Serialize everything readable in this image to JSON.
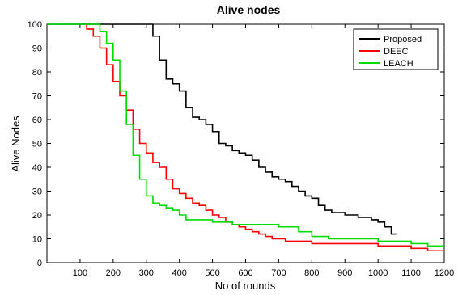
{
  "chart_data": {
    "type": "line",
    "title": "Alive nodes",
    "xlabel": "No of rounds",
    "ylabel": "Alive Nodes",
    "xlim": [
      0,
      1200
    ],
    "ylim": [
      0,
      100
    ],
    "xticks": [
      100,
      200,
      300,
      400,
      500,
      600,
      700,
      800,
      900,
      1000,
      1100,
      1200
    ],
    "yticks": [
      0,
      10,
      20,
      30,
      40,
      50,
      60,
      70,
      80,
      90,
      100
    ],
    "legend_position": "top-right",
    "grid": false,
    "series": [
      {
        "name": "Proposed",
        "color": "#000000",
        "points": [
          [
            0,
            100
          ],
          [
            130,
            100
          ],
          [
            300,
            100
          ],
          [
            320,
            95
          ],
          [
            340,
            85
          ],
          [
            360,
            77
          ],
          [
            380,
            75
          ],
          [
            400,
            72
          ],
          [
            420,
            65
          ],
          [
            440,
            61
          ],
          [
            460,
            60
          ],
          [
            480,
            58
          ],
          [
            500,
            55
          ],
          [
            520,
            50
          ],
          [
            540,
            49
          ],
          [
            560,
            47
          ],
          [
            580,
            46
          ],
          [
            600,
            45
          ],
          [
            620,
            43
          ],
          [
            640,
            40
          ],
          [
            660,
            38
          ],
          [
            680,
            36
          ],
          [
            700,
            35
          ],
          [
            720,
            34
          ],
          [
            740,
            32
          ],
          [
            760,
            30
          ],
          [
            780,
            28
          ],
          [
            800,
            27
          ],
          [
            820,
            24
          ],
          [
            840,
            22
          ],
          [
            860,
            21
          ],
          [
            880,
            21
          ],
          [
            900,
            20
          ],
          [
            920,
            20
          ],
          [
            940,
            19
          ],
          [
            960,
            19
          ],
          [
            980,
            18
          ],
          [
            1000,
            17
          ],
          [
            1020,
            15
          ],
          [
            1040,
            12
          ],
          [
            1055,
            12
          ]
        ]
      },
      {
        "name": "DEEC",
        "color": "#ff0000",
        "points": [
          [
            110,
            100
          ],
          [
            120,
            98
          ],
          [
            140,
            95
          ],
          [
            160,
            90
          ],
          [
            180,
            83
          ],
          [
            200,
            76
          ],
          [
            220,
            70
          ],
          [
            240,
            64
          ],
          [
            260,
            56
          ],
          [
            280,
            50
          ],
          [
            300,
            46
          ],
          [
            320,
            42
          ],
          [
            340,
            40
          ],
          [
            360,
            35
          ],
          [
            380,
            31
          ],
          [
            400,
            29
          ],
          [
            420,
            27
          ],
          [
            440,
            25
          ],
          [
            460,
            24
          ],
          [
            480,
            22
          ],
          [
            500,
            20
          ],
          [
            520,
            19
          ],
          [
            540,
            17
          ],
          [
            560,
            16
          ],
          [
            580,
            15
          ],
          [
            600,
            14
          ],
          [
            620,
            13
          ],
          [
            640,
            12
          ],
          [
            660,
            11
          ],
          [
            680,
            10
          ],
          [
            700,
            10
          ],
          [
            720,
            9
          ],
          [
            800,
            8
          ],
          [
            900,
            8
          ],
          [
            1000,
            7
          ],
          [
            1100,
            6
          ],
          [
            1150,
            5
          ],
          [
            1200,
            5
          ]
        ]
      },
      {
        "name": "LEACH",
        "color": "#00dd00",
        "points": [
          [
            0,
            100
          ],
          [
            150,
            100
          ],
          [
            160,
            97
          ],
          [
            180,
            92
          ],
          [
            200,
            85
          ],
          [
            220,
            72
          ],
          [
            240,
            58
          ],
          [
            260,
            45
          ],
          [
            280,
            35
          ],
          [
            300,
            28
          ],
          [
            320,
            25
          ],
          [
            340,
            24
          ],
          [
            360,
            23
          ],
          [
            380,
            22
          ],
          [
            400,
            20
          ],
          [
            420,
            18
          ],
          [
            500,
            17
          ],
          [
            560,
            16
          ],
          [
            600,
            16
          ],
          [
            700,
            15
          ],
          [
            760,
            13
          ],
          [
            800,
            11
          ],
          [
            850,
            10
          ],
          [
            1000,
            9
          ],
          [
            1050,
            9
          ],
          [
            1100,
            8
          ],
          [
            1150,
            7
          ],
          [
            1200,
            7
          ]
        ]
      }
    ]
  }
}
